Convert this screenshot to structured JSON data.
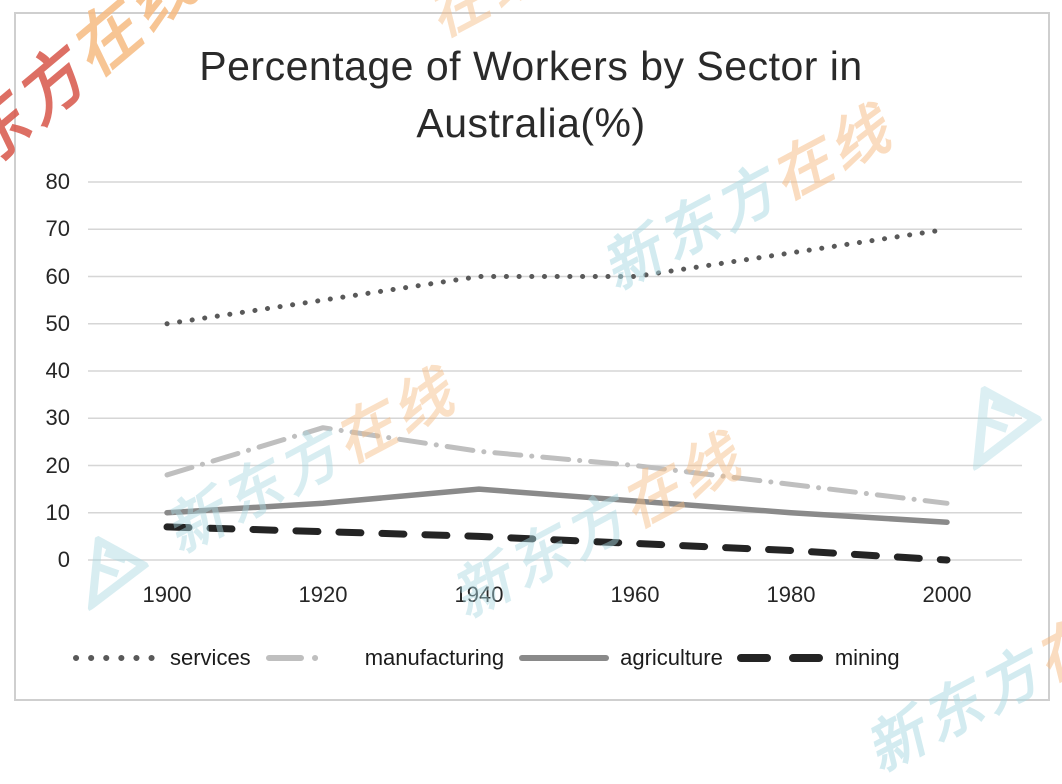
{
  "watermark": {
    "full_text": "新东方在线",
    "brand_teal": "新东方",
    "brand_orange": "在线",
    "teal": "#a9d9e2",
    "orange": "#f6bb82",
    "red": "#d8564a",
    "logo": "new-oriental-logo"
  },
  "chart_data": {
    "type": "line",
    "title": "Percentage of Workers by Sector in Australia(%)",
    "title_line1": "Percentage of Workers by Sector in",
    "title_line2": "Australia(%)",
    "xlabel": "",
    "ylabel": "",
    "categories": [
      1900,
      1920,
      1940,
      1960,
      1980,
      2000
    ],
    "x_tick_labels": [
      "1900",
      "1920",
      "1940",
      "1960",
      "1980",
      "2000"
    ],
    "y_ticks": [
      0,
      10,
      20,
      30,
      40,
      50,
      60,
      70,
      80
    ],
    "ylim": [
      0,
      80
    ],
    "grid": "horizontal",
    "grid_color": "#d6d6d6",
    "tick_color": "#262626",
    "legend_position": "bottom",
    "series": [
      {
        "name": "services",
        "values": [
          50,
          55,
          60,
          60,
          65,
          70
        ],
        "color": "#595959",
        "line_style": "dotted"
      },
      {
        "name": "manufacturing",
        "values": [
          18,
          28,
          23,
          20,
          16,
          12
        ],
        "color": "#bfbfbf",
        "line_style": "dash-dot"
      },
      {
        "name": "agriculture",
        "values": [
          10,
          12,
          15,
          12.5,
          10,
          8
        ],
        "color": "#8a8a8a",
        "line_style": "solid"
      },
      {
        "name": "mining",
        "values": [
          7,
          6,
          5,
          3.5,
          2,
          0
        ],
        "color": "#242424",
        "line_style": "dashed"
      }
    ]
  }
}
